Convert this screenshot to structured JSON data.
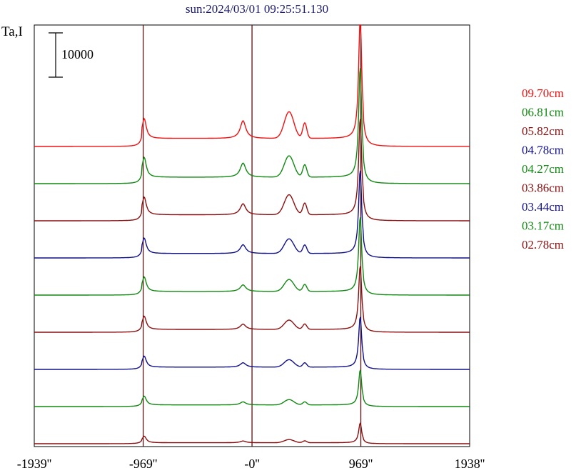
{
  "chart_data": {
    "type": "line",
    "title": "sun:2024/03/01 09:25:51.130",
    "ylabel": "Ta,I",
    "scale_bar_label": "10000",
    "xlim": [
      -1939,
      1938
    ],
    "x_ticks": [
      {
        "value": -1939,
        "label": "-1939''"
      },
      {
        "value": -969,
        "label": "-969''"
      },
      {
        "value": 0,
        "label": "-0''"
      },
      {
        "value": 969,
        "label": "969''"
      },
      {
        "value": 1938,
        "label": "1938''"
      }
    ],
    "vertical_lines": [
      -969,
      0,
      969
    ],
    "line_color": "#5a0f0f",
    "legend_placement": "right",
    "series": [
      {
        "name": "09.70cm",
        "color": "#ee1111",
        "baseline": 0,
        "peak_height": 28000,
        "left_limb": 4500,
        "mid_bump": 4000,
        "core": 10000
      },
      {
        "name": "06.81cm",
        "color": "#118811",
        "baseline": 0,
        "peak_height": 25000,
        "left_limb": 4500,
        "mid_bump": 3200,
        "core": 8000
      },
      {
        "name": "05.82cm",
        "color": "#8b0f0f",
        "baseline": 0,
        "peak_height": 22000,
        "left_limb": 4000,
        "mid_bump": 2500,
        "core": 7500
      },
      {
        "name": "04.78cm",
        "color": "#10108b",
        "baseline": 0,
        "peak_height": 19000,
        "left_limb": 3500,
        "mid_bump": 2000,
        "core": 5500
      },
      {
        "name": "04.27cm",
        "color": "#118811",
        "baseline": 0,
        "peak_height": 17000,
        "left_limb": 3300,
        "mid_bump": 1500,
        "core": 4500
      },
      {
        "name": "03.86cm",
        "color": "#8b0f0f",
        "baseline": 0,
        "peak_height": 14500,
        "left_limb": 3000,
        "mid_bump": 1200,
        "core": 3500
      },
      {
        "name": "03.44cm",
        "color": "#10108b",
        "baseline": 0,
        "peak_height": 11500,
        "left_limb": 2500,
        "mid_bump": 1000,
        "core": 2800
      },
      {
        "name": "03.17cm",
        "color": "#118811",
        "baseline": 0,
        "peak_height": 8000,
        "left_limb": 2000,
        "mid_bump": 700,
        "core": 2000
      },
      {
        "name": "02.78cm",
        "color": "#8b0f0f",
        "baseline": 0,
        "peak_height": 4500,
        "left_limb": 1500,
        "mid_bump": 400,
        "core": 1200
      }
    ]
  }
}
